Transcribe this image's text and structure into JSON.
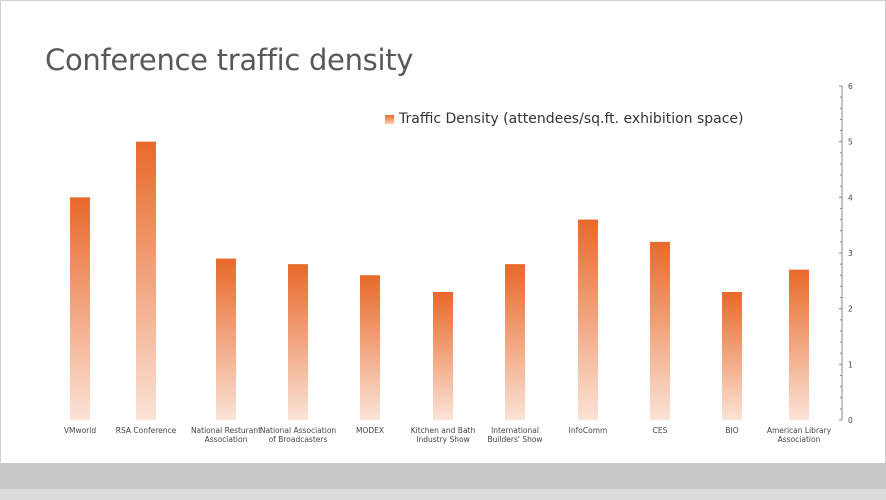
{
  "title": "Conference traffic density",
  "chart_data": {
    "type": "bar",
    "title": "Conference traffic density",
    "categories": [
      "VMworld",
      "RSA Conference",
      "National Resturant Association",
      "National Association of Broadcasters",
      "MODEX",
      "Kitchen and Bath Industry Show",
      "International Builders' Show",
      "InfoComm",
      "CES",
      "BIO",
      "American Library Association"
    ],
    "series": [
      {
        "name": "Traffic Density (attendees/sq.ft. exhibition space)",
        "values": [
          4,
          5,
          2.9,
          2.8,
          2.6,
          2.3,
          2.8,
          3.6,
          3.2,
          2.3,
          2.7
        ]
      }
    ],
    "ylim": [
      0,
      6
    ],
    "yticks": [
      "0",
      "1",
      "2",
      "3",
      "4",
      "5",
      "6"
    ],
    "y_axis_side": "right",
    "grid": false,
    "legend_position": "top-right",
    "colors": {
      "bar_top": "#e8692a",
      "bar_bottom": "#fbe3d6"
    }
  }
}
